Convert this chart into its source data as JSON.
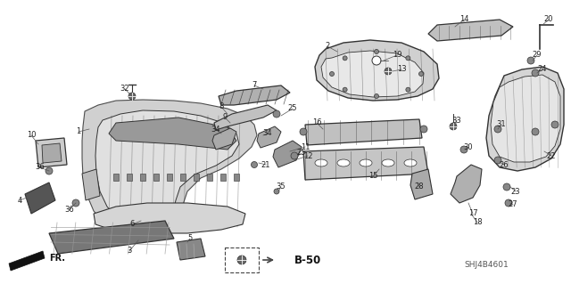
{
  "background_color": "#ffffff",
  "line_color": "#333333",
  "text_color": "#222222",
  "diagram_code": "SHJ4B4601",
  "b50_label": "B-50",
  "arrow_label": "FR.",
  "figsize": [
    6.4,
    3.19
  ],
  "dpi": 100
}
